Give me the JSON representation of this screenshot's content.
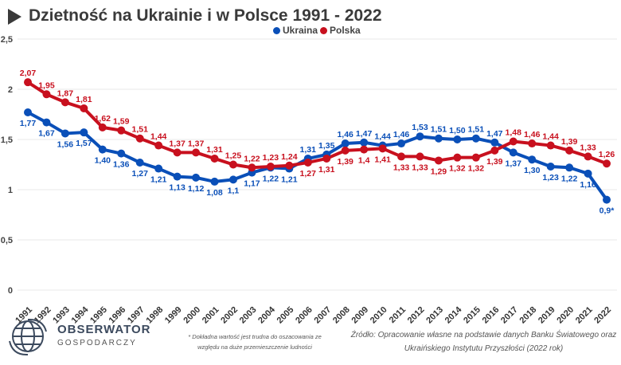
{
  "chart_data": {
    "type": "line",
    "title": "Dzietność na Ukrainie i w Polsce 1991 - 2022",
    "x": [
      "1991",
      "1992",
      "1993",
      "1994",
      "1995",
      "1996",
      "1997",
      "1998",
      "1999",
      "2000",
      "2001",
      "2002",
      "2003",
      "2004",
      "2005",
      "2006",
      "2007",
      "2008",
      "2009",
      "2010",
      "2011",
      "2012",
      "2013",
      "2014",
      "2015",
      "2016",
      "2017",
      "2018",
      "2019",
      "2020",
      "2021",
      "2022"
    ],
    "ylim": [
      0,
      2.5
    ],
    "yticks": [
      "0",
      "0,5",
      "1",
      "1,5",
      "2",
      "2,5"
    ],
    "grid": true,
    "legend_placement": "top-center",
    "series": [
      {
        "name": "Ukraina",
        "color": "#0a4fb8",
        "values": [
          1.77,
          1.67,
          1.56,
          1.57,
          1.4,
          1.36,
          1.27,
          1.21,
          1.13,
          1.12,
          1.08,
          1.1,
          1.17,
          1.22,
          1.21,
          1.31,
          1.35,
          1.46,
          1.47,
          1.44,
          1.46,
          1.53,
          1.51,
          1.5,
          1.51,
          1.47,
          1.37,
          1.3,
          1.23,
          1.22,
          1.16,
          0.9
        ],
        "labels": [
          "1,77",
          "1,67",
          "1,56",
          "1,57",
          "1,40",
          "1,36",
          "1,27",
          "1,21",
          "1,13",
          "1,12",
          "1,08",
          "1,1",
          "1,17",
          "1,22",
          "1,21",
          "1,31",
          "1,35",
          "1,46",
          "1,47",
          "1,44",
          "1,46",
          "1,53",
          "1,51",
          "1,50",
          "1,51",
          "1,47",
          "1,37",
          "1,30",
          "1,23",
          "1,22",
          "1,16",
          "0,9*"
        ]
      },
      {
        "name": "Polska",
        "color": "#c8101e",
        "values": [
          2.07,
          1.95,
          1.87,
          1.81,
          1.62,
          1.59,
          1.51,
          1.44,
          1.37,
          1.37,
          1.31,
          1.25,
          1.22,
          1.23,
          1.24,
          1.27,
          1.31,
          1.39,
          1.4,
          1.41,
          1.33,
          1.33,
          1.29,
          1.32,
          1.32,
          1.39,
          1.48,
          1.46,
          1.44,
          1.39,
          1.33,
          1.26
        ],
        "labels": [
          "2,07",
          "1,95",
          "1,87",
          "1,81",
          "1,62",
          "1,59",
          "1,51",
          "1,44",
          "1,37",
          "1,37",
          "1,31",
          "1,25",
          "1,22",
          "1,23",
          "1,24",
          "1,27",
          "1,31",
          "1,39",
          "1,4",
          "1,41",
          "1,33",
          "1,33",
          "1,29",
          "1,32",
          "1,32",
          "1,39",
          "1,48",
          "1,46",
          "1,44",
          "1,39",
          "1,33",
          "1,26"
        ]
      }
    ]
  },
  "footer": {
    "logo_name": "OBSERWATOR",
    "logo_sub": "GOSPODARCZY",
    "note": "* Dokładna wartość jest trudna do oszacowania ze względu na duże przemieszczenie ludności",
    "source_line1": "Źródło: Opracowanie własne na podstawie danych Banku Światowego oraz",
    "source_line2": "Ukraińskiego Instytutu Przyszłości (2022 rok)"
  }
}
